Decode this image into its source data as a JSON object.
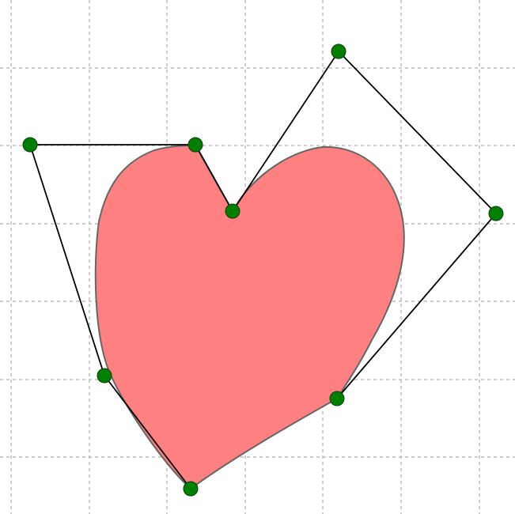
{
  "diagram": {
    "type": "bezier-heart-editor",
    "colors": {
      "fill": "#ff8080",
      "outline": "#666666",
      "control_line": "#000000",
      "control_point": "#008000",
      "grid": "#bdbdbd"
    },
    "control_point_count": 8
  }
}
